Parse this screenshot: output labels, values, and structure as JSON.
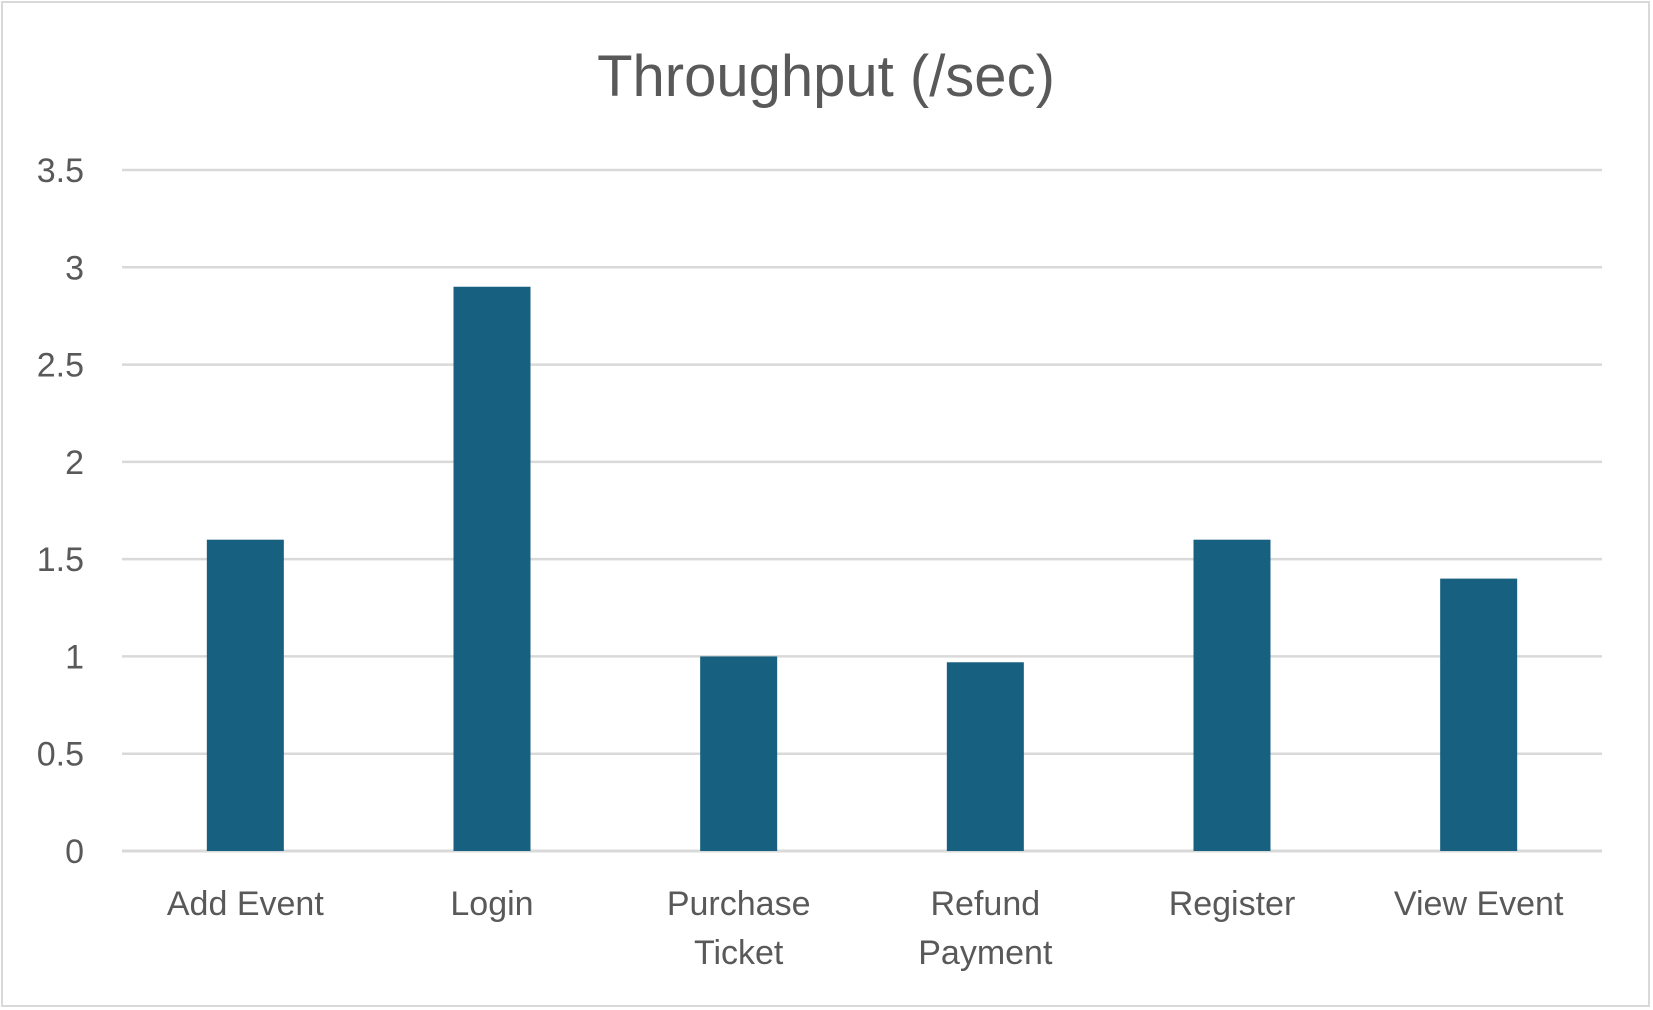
{
  "chart_data": {
    "type": "bar",
    "title": "Throughput (/sec)",
    "xlabel": "",
    "ylabel": "",
    "categories": [
      "Add Event",
      "Login",
      "Purchase Ticket",
      "Refund Payment",
      "Register",
      "View Event"
    ],
    "category_lines": [
      [
        "Add Event"
      ],
      [
        "Login"
      ],
      [
        "Purchase",
        "Ticket"
      ],
      [
        "Refund",
        "Payment"
      ],
      [
        "Register"
      ],
      [
        "View Event"
      ]
    ],
    "values": [
      1.6,
      2.9,
      1.0,
      0.97,
      1.6,
      1.4
    ],
    "ylim": [
      0,
      3.5
    ],
    "yticks": [
      "0",
      "0.5",
      "1",
      "1.5",
      "2",
      "2.5",
      "3",
      "3.5"
    ],
    "grid": true,
    "legend": "none",
    "colors": {
      "bar": "#17607f",
      "grid": "#d9d9d9",
      "text": "#595959"
    }
  }
}
